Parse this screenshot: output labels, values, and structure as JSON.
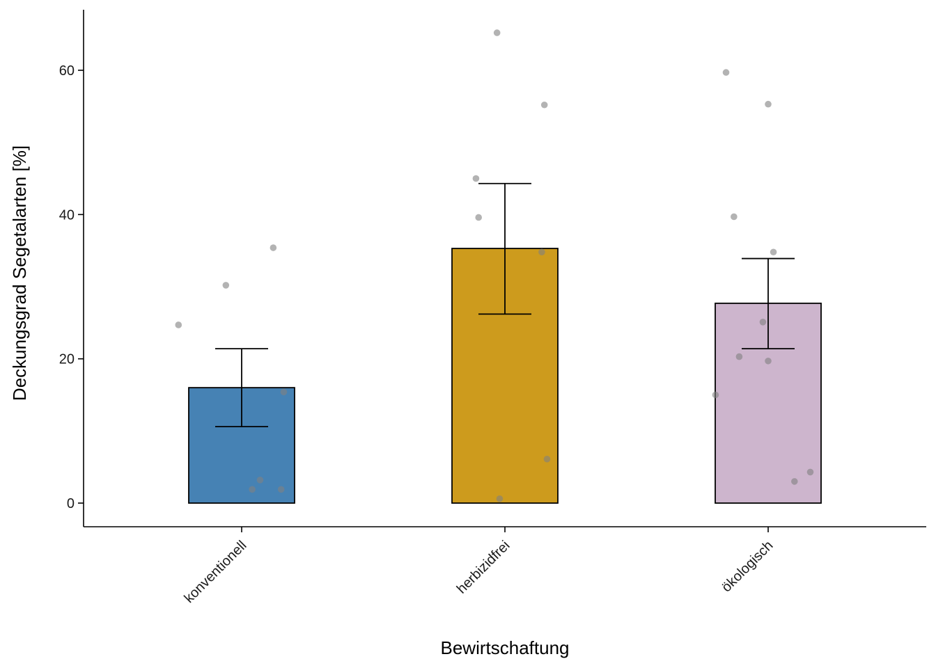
{
  "chart_data": {
    "type": "bar",
    "title": "",
    "xlabel": "Bewirtschaftung",
    "ylabel": "Deckungsgrad Segetalarten [%]",
    "ylim": [
      -3.2,
      68.5
    ],
    "yticks": [
      0,
      20,
      40,
      60
    ],
    "grid": false,
    "categories": [
      "konventionell",
      "herbizidfrei",
      "ökologisch"
    ],
    "colors": [
      "#4682B4",
      "#CD9B1D",
      "#CDB5CD"
    ],
    "values": [
      16,
      35.3,
      27.7
    ],
    "error_low": [
      10.6,
      26.2,
      21.4
    ],
    "error_high": [
      21.4,
      44.3,
      33.9
    ],
    "points": [
      [
        [
          -0.24,
          24.7
        ],
        [
          -0.06,
          30.2
        ],
        [
          0.12,
          35.4
        ],
        [
          0.16,
          15.4
        ],
        [
          0.07,
          3.2
        ],
        [
          0.04,
          1.9
        ],
        [
          0.15,
          1.9
        ]
      ],
      [
        [
          -0.11,
          45.0
        ],
        [
          -0.1,
          39.6
        ],
        [
          -0.03,
          65.2
        ],
        [
          0.15,
          55.2
        ],
        [
          0.14,
          34.8
        ],
        [
          0.16,
          6.1
        ],
        [
          -0.02,
          0.6
        ]
      ],
      [
        [
          -0.16,
          59.7
        ],
        [
          0.0,
          55.3
        ],
        [
          -0.13,
          39.7
        ],
        [
          0.02,
          34.8
        ],
        [
          -0.2,
          15.0
        ],
        [
          -0.11,
          20.3
        ],
        [
          -0.02,
          25.1
        ],
        [
          0.0,
          19.7
        ],
        [
          0.16,
          4.3
        ],
        [
          0.1,
          3.0
        ]
      ]
    ]
  }
}
